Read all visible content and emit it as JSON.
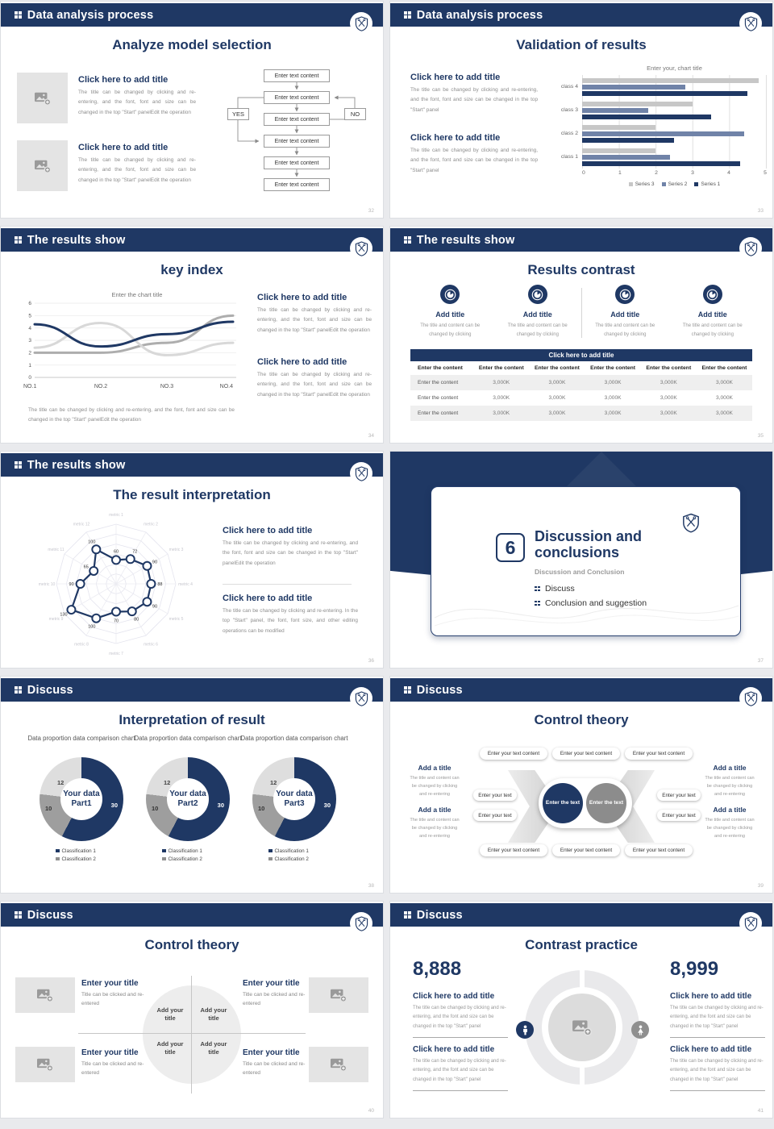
{
  "colors": {
    "navy": "#1F3864",
    "blue_gray": "#7083A8",
    "bar_light": "#C7C7C7",
    "line_light": "#D8D8D8",
    "line_mid": "#ADADAD",
    "donut_dark": "#9E9E9E",
    "donut_light": "#DEDEDE"
  },
  "common": {
    "click_title": "Click here to add title",
    "body_full": "The title can be changed by clicking and re-entering, and the font, font and size can be changed in the top \"Start\" panelEdit the operation",
    "body_short": "The title can be changed by clicking and re-entering, and the font, font and size can be changed in the top \"Start\" panel",
    "body_alt": "The title can be changed by clicking and re-entering. In the top \"Start\" panel, the font, font size, and other editing operations can be modified",
    "body_small": "The title can be changed by clicking and re-entering, and the font and size can be changed in the top \"Start\" panel"
  },
  "slides": {
    "s1": {
      "header": "Data analysis process",
      "title": "Analyze model selection",
      "flow": [
        "Enter text content",
        "Enter text content",
        "Enter text content",
        "Enter text content",
        "Enter text content",
        "Enter text content"
      ],
      "yes": "YES",
      "no": "NO",
      "page": "32"
    },
    "s2": {
      "header": "Data analysis process",
      "title": "Validation of results",
      "page": "33"
    },
    "s3": {
      "header": "The results show",
      "title": "key index",
      "page": "34"
    },
    "s4": {
      "header": "The results show",
      "title": "Results contrast",
      "card_title": "Add title",
      "card_body": "The title and content can be changed by clicking",
      "table": {
        "title": "Click here to add title",
        "header": "Enter the content",
        "row_label": "Enter the content",
        "value": "3,000K"
      },
      "page": "35"
    },
    "s5": {
      "header": "The results show",
      "title": "The result interpretation",
      "page": "36"
    },
    "s6": {
      "number": "6",
      "title_line1": "Discussion and",
      "title_line2": "conclusions",
      "subtitle": "Discussion and Conclusion",
      "bullets": [
        "Discuss",
        "Conclusion and suggestion"
      ],
      "page": "37"
    },
    "s7": {
      "header": "Discuss",
      "title": "Interpretation of result",
      "donut_title": "Data proportion data comparison chart",
      "centers": [
        [
          "Your data",
          "Part1"
        ],
        [
          "Your data",
          "Part2"
        ],
        [
          "Your data",
          "Part3"
        ]
      ],
      "legend": [
        "Classification 1",
        "Classification 2"
      ],
      "page": "38"
    },
    "s8": {
      "header": "Discuss",
      "title": "Control theory",
      "pill_long": "Enter your text content",
      "pill_short": "Enter your text",
      "center_left": "Enter the text",
      "center_right": "Enter the text",
      "side_title": "Add a title",
      "side_body": "The title and content can be changed by clicking and re-entering",
      "page": "39"
    },
    "s9": {
      "header": "Discuss",
      "title": "Control theory",
      "item_title": "Enter your title",
      "item_body": "Title can be clicked and re-entered",
      "quad": "Add your title",
      "page": "40"
    },
    "s10": {
      "header": "Discuss",
      "title": "Contrast practice",
      "num_left": "8,888",
      "num_right": "8,999",
      "page": "41"
    }
  },
  "chart_data": [
    {
      "type": "bar",
      "orientation": "horizontal",
      "title": "Enter your, chart title",
      "categories": [
        "class 1",
        "class 2",
        "class 3",
        "class 4"
      ],
      "series": [
        {
          "name": "Series 1",
          "color": "#1F3864",
          "values": [
            4.3,
            2.5,
            3.5,
            4.5
          ]
        },
        {
          "name": "Series 2",
          "color": "#7083A8",
          "values": [
            2.4,
            4.4,
            1.8,
            2.8
          ]
        },
        {
          "name": "Series 3",
          "color": "#C7C7C7",
          "values": [
            2.0,
            2.0,
            3.0,
            4.8
          ]
        }
      ],
      "xlim": [
        0,
        5
      ],
      "xticks": [
        "0",
        "1",
        "2",
        "3",
        "4",
        "5"
      ],
      "legend_order": [
        "Series 3",
        "Series 2",
        "Series 1"
      ],
      "legend_position": "bottom"
    },
    {
      "type": "line",
      "title": "Enter the chart title",
      "x": [
        "NO.1",
        "NO.2",
        "NO.3",
        "NO.4"
      ],
      "series": [
        {
          "name": "line-navy",
          "color": "#1F3864",
          "values": [
            4.3,
            2.5,
            3.5,
            4.5
          ]
        },
        {
          "name": "line-light-gray",
          "color": "#D8D8D8",
          "values": [
            2.4,
            4.4,
            1.8,
            2.8
          ]
        },
        {
          "name": "line-mid-gray",
          "color": "#ADADAD",
          "values": [
            2.0,
            2.0,
            2.8,
            5.0
          ]
        }
      ],
      "ylim": [
        0,
        6
      ],
      "grid": true
    },
    {
      "type": "radar",
      "categories": [
        "metric 1",
        "metric 2",
        "metric 3",
        "metric 4",
        "metric 5",
        "metric 6",
        "metric 7",
        "metric 8",
        "metric 9",
        "metric 10",
        "metric 11",
        "metric 12"
      ],
      "values": [
        60,
        72,
        90,
        88,
        90,
        80,
        70,
        100,
        130,
        90,
        65,
        100
      ],
      "max": 150,
      "rings": 6
    },
    {
      "type": "donut",
      "count": 3,
      "title": "Data proportion data comparison chart",
      "slices": [
        {
          "label": "Classification 1",
          "value": 30,
          "color": "#1F3864"
        },
        {
          "label": "Classification 2",
          "value": 10,
          "color": "#9E9E9E"
        },
        {
          "label": "Classification 2b",
          "value": 12,
          "color": "#DEDEDE"
        }
      ]
    }
  ]
}
